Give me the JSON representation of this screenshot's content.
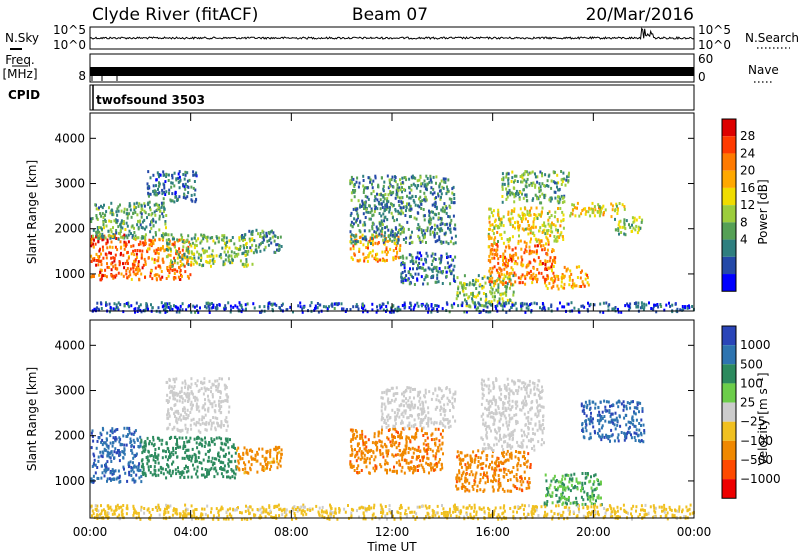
{
  "header": {
    "station": "Clyde River (fitACF)",
    "beam": "Beam 07",
    "date": "20/Mar/2016"
  },
  "noise_panel": {
    "left_label": "N.Sky",
    "right_label": "N.Search",
    "left_ticks": [
      "10^5",
      "10^0"
    ],
    "right_ticks": [
      "10^5",
      "10^0"
    ]
  },
  "freq_panel": {
    "left_label_1": "Freq.",
    "left_label_2": "[MHz]",
    "right_label": "Nave",
    "left_ticks": [
      "8"
    ],
    "right_ticks": [
      "60",
      "0"
    ]
  },
  "cpid_panel": {
    "label": "CPID",
    "program": "twofsound 3503"
  },
  "colors": {
    "axis": "#000000",
    "background": "#ffffff"
  },
  "chart_data": [
    {
      "type": "heatmap",
      "name": "power",
      "ylabel": "Slant Range [km]",
      "yticks": [
        1000,
        2000,
        3000,
        4000
      ],
      "ylim": [
        180,
        4560
      ],
      "xlim": [
        0,
        24
      ],
      "colorbar": {
        "label": "Power [dB]",
        "ticks": [
          "28",
          "24",
          "20",
          "16",
          "12",
          "8",
          "4"
        ],
        "colors": [
          "#dd0000",
          "#ff3a00",
          "#ff7a00",
          "#ffa800",
          "#f0dc00",
          "#9ccd3c",
          "#55a055",
          "#2f7f7f",
          "#2449a8",
          "#0000ff"
        ]
      },
      "regions": [
        {
          "t": [
            0.0,
            1.5
          ],
          "r": [
            900,
            1900
          ],
          "value": 26
        },
        {
          "t": [
            1.5,
            4.0
          ],
          "r": [
            900,
            1800
          ],
          "value": 24
        },
        {
          "t": [
            0.0,
            3.0
          ],
          "r": [
            1800,
            2600
          ],
          "value": 12
        },
        {
          "t": [
            3.0,
            6.5
          ],
          "r": [
            1200,
            1900
          ],
          "value": 14
        },
        {
          "t": [
            2.2,
            4.2
          ],
          "r": [
            2600,
            3300
          ],
          "value": 8
        },
        {
          "t": [
            6.0,
            7.6
          ],
          "r": [
            1500,
            2000
          ],
          "value": 10
        },
        {
          "t": [
            10.3,
            12.3
          ],
          "r": [
            1300,
            1900
          ],
          "value": 22
        },
        {
          "t": [
            10.3,
            14.5
          ],
          "r": [
            1700,
            3200
          ],
          "value": 10
        },
        {
          "t": [
            12.3,
            14.5
          ],
          "r": [
            800,
            1500
          ],
          "value": 8
        },
        {
          "t": [
            14.5,
            16.8
          ],
          "r": [
            300,
            1000
          ],
          "value": 14
        },
        {
          "t": [
            15.8,
            18.5
          ],
          "r": [
            800,
            1700
          ],
          "value": 24
        },
        {
          "t": [
            15.8,
            18.8
          ],
          "r": [
            1700,
            2500
          ],
          "value": 18
        },
        {
          "t": [
            16.3,
            19.0
          ],
          "r": [
            2600,
            3300
          ],
          "value": 12
        },
        {
          "t": [
            18.0,
            19.8
          ],
          "r": [
            700,
            1200
          ],
          "value": 22
        },
        {
          "t": [
            19.0,
            21.3
          ],
          "r": [
            2300,
            2600
          ],
          "value": 18
        },
        {
          "t": [
            20.8,
            22.0
          ],
          "r": [
            1900,
            2300
          ],
          "value": 14
        },
        {
          "t": [
            0.0,
            24.0
          ],
          "r": [
            180,
            400
          ],
          "value": 6
        }
      ]
    },
    {
      "type": "heatmap",
      "name": "velocity",
      "xlabel": "Time UT",
      "ylabel": "Slant Range [km]",
      "xticks": [
        "00:00",
        "04:00",
        "08:00",
        "12:00",
        "16:00",
        "20:00",
        "00:00"
      ],
      "yticks": [
        1000,
        2000,
        3000,
        4000
      ],
      "ylim": [
        180,
        4560
      ],
      "xlim": [
        0,
        24
      ],
      "colorbar": {
        "label": "Velocity [m s⁻¹]",
        "ticks": [
          "1000",
          "500",
          "100",
          "25",
          "−25",
          "−100",
          "−500",
          "−1000"
        ],
        "colors": [
          "#2a45b8",
          "#2e74b0",
          "#2c8a5e",
          "#6ccd4a",
          "#cccccc",
          "#f0c020",
          "#f08800",
          "#ff4a00",
          "#ee0000"
        ]
      },
      "regions": [
        {
          "t": [
            0.0,
            2.0
          ],
          "r": [
            1000,
            2200
          ],
          "value": 900
        },
        {
          "t": [
            2.0,
            5.8
          ],
          "r": [
            1100,
            2000
          ],
          "value": 300
        },
        {
          "t": [
            5.8,
            7.6
          ],
          "r": [
            1200,
            1800
          ],
          "value": -150
        },
        {
          "t": [
            3.0,
            5.5
          ],
          "r": [
            2100,
            3300
          ],
          "value": 0
        },
        {
          "t": [
            10.3,
            14.0
          ],
          "r": [
            1200,
            2200
          ],
          "value": -400
        },
        {
          "t": [
            11.5,
            14.5
          ],
          "r": [
            2200,
            3100
          ],
          "value": 0
        },
        {
          "t": [
            14.5,
            17.5
          ],
          "r": [
            800,
            1700
          ],
          "value": -400
        },
        {
          "t": [
            15.5,
            18.0
          ],
          "r": [
            1700,
            3300
          ],
          "value": 0
        },
        {
          "t": [
            18.0,
            20.3
          ],
          "r": [
            500,
            1200
          ],
          "value": 100
        },
        {
          "t": [
            19.5,
            22.0
          ],
          "r": [
            1900,
            2800
          ],
          "value": 900
        },
        {
          "t": [
            0.0,
            24.0
          ],
          "r": [
            180,
            500
          ],
          "value": -50
        }
      ]
    }
  ]
}
